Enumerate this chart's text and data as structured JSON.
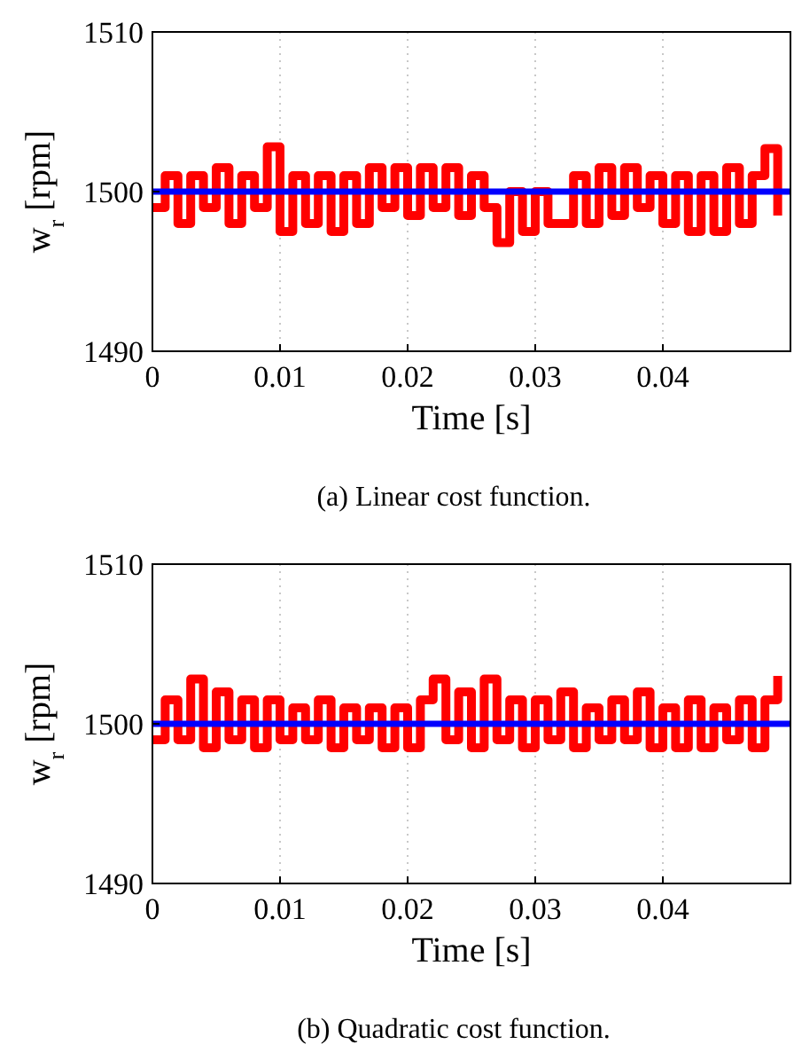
{
  "chart_data": [
    {
      "type": "step",
      "xlabel": "Time [s]",
      "ylabel": "w$_{r}$ [rpm]",
      "xlim": [
        0,
        0.05
      ],
      "ylim": [
        1490,
        1510
      ],
      "xticks": [
        0,
        0.01,
        0.02,
        0.03,
        0.04
      ],
      "yticks": [
        1490,
        1500,
        1510
      ],
      "grid": "x",
      "annotations": [
        "(a) Linear cost function."
      ],
      "series": [
        {
          "color": "#ff0000",
          "x": [
            0,
            0.001,
            0.002,
            0.003,
            0.004,
            0.005,
            0.006,
            0.007,
            0.008,
            0.009,
            0.01,
            0.011,
            0.012,
            0.013,
            0.014,
            0.015,
            0.016,
            0.017,
            0.018,
            0.019,
            0.02,
            0.021,
            0.022,
            0.023,
            0.024,
            0.025,
            0.026,
            0.027,
            0.028,
            0.029,
            0.03,
            0.031,
            0.032,
            0.033,
            0.034,
            0.035,
            0.036,
            0.037,
            0.038,
            0.039,
            0.04,
            0.041,
            0.042,
            0.043,
            0.044,
            0.045,
            0.046,
            0.047,
            0.048,
            0.049
          ],
          "values": [
            1499,
            1501,
            1498,
            1501,
            1499,
            1501.5,
            1498,
            1501,
            1499,
            1502.8,
            1497.5,
            1501,
            1498,
            1501,
            1497.5,
            1501,
            1498,
            1501.5,
            1499,
            1501.5,
            1498.5,
            1501.5,
            1499,
            1501.5,
            1498.5,
            1501,
            1499,
            1496.8,
            1500,
            1497.5,
            1500,
            1498,
            1498,
            1501,
            1498,
            1501.5,
            1498.5,
            1501.5,
            1499,
            1501,
            1498,
            1501,
            1497.5,
            1501,
            1497.5,
            1501.5,
            1498,
            1501,
            1502.7,
            1498.5
          ]
        },
        {
          "color": "#0000ff",
          "type": "line",
          "x": [
            0,
            0.05
          ],
          "values": [
            1500,
            1500
          ]
        }
      ]
    },
    {
      "type": "step",
      "xlabel": "Time [s]",
      "ylabel": "w$_{r}$ [rpm]",
      "xlim": [
        0,
        0.05
      ],
      "ylim": [
        1490,
        1510
      ],
      "xticks": [
        0,
        0.01,
        0.02,
        0.03,
        0.04
      ],
      "yticks": [
        1490,
        1500,
        1510
      ],
      "grid": "x",
      "annotations": [
        "(b) Quadratic cost function."
      ],
      "series": [
        {
          "color": "#ff0000",
          "x": [
            0,
            0.001,
            0.002,
            0.003,
            0.004,
            0.005,
            0.006,
            0.007,
            0.008,
            0.009,
            0.01,
            0.011,
            0.012,
            0.013,
            0.014,
            0.015,
            0.016,
            0.017,
            0.018,
            0.019,
            0.02,
            0.021,
            0.022,
            0.023,
            0.024,
            0.025,
            0.026,
            0.027,
            0.028,
            0.029,
            0.03,
            0.031,
            0.032,
            0.033,
            0.034,
            0.035,
            0.036,
            0.037,
            0.038,
            0.039,
            0.04,
            0.041,
            0.042,
            0.043,
            0.044,
            0.045,
            0.046,
            0.047,
            0.048,
            0.049
          ],
          "values": [
            1499,
            1501.5,
            1499,
            1502.8,
            1498.5,
            1502,
            1499,
            1501.5,
            1498.5,
            1501.5,
            1499,
            1501,
            1499,
            1501.5,
            1498.5,
            1501,
            1499,
            1501,
            1498.5,
            1501,
            1498.5,
            1501.5,
            1502.8,
            1499,
            1502,
            1498.5,
            1502.8,
            1499,
            1501.5,
            1498.5,
            1501.5,
            1499,
            1502,
            1498.5,
            1501,
            1499,
            1501.5,
            1499,
            1502,
            1498.5,
            1501,
            1498.5,
            1501.5,
            1498.5,
            1501,
            1499,
            1501.5,
            1498.5,
            1501.5,
            1503
          ]
        },
        {
          "color": "#0000ff",
          "type": "line",
          "x": [
            0,
            0.05
          ],
          "values": [
            1500,
            1500
          ]
        }
      ]
    }
  ]
}
